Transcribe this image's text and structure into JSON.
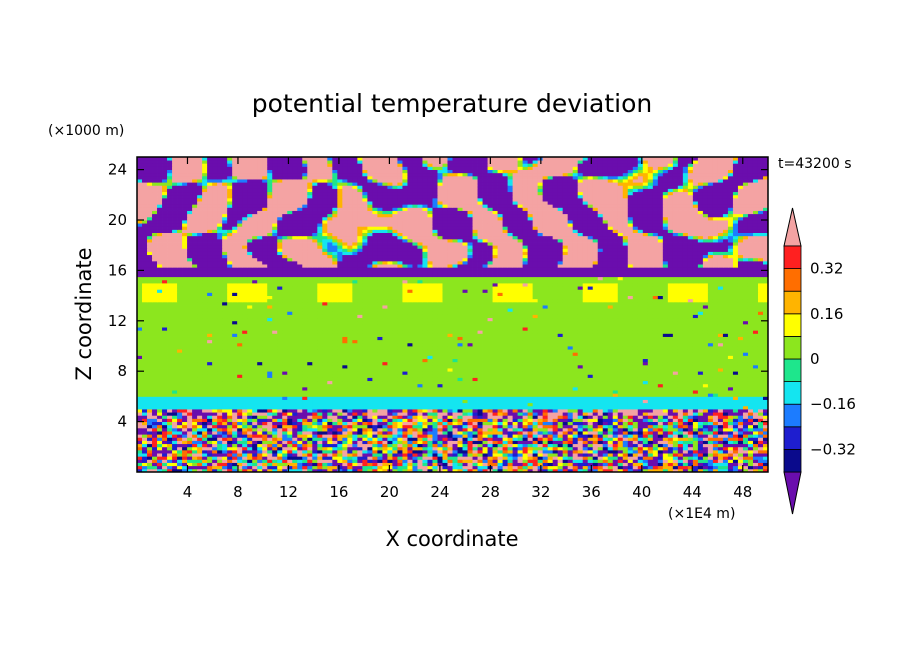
{
  "chart_data": {
    "type": "heatmap",
    "title": "potential temperature deviation",
    "xlabel": "X coordinate",
    "ylabel": "Z coordinate",
    "x_unit": "(×1E4 m)",
    "y_unit": "(×1000 m)",
    "time_label": "t=43200 s",
    "xlim": [
      0,
      50
    ],
    "ylim": [
      0,
      25
    ],
    "x_ticks": [
      4,
      8,
      12,
      16,
      20,
      24,
      28,
      32,
      36,
      40,
      44,
      48
    ],
    "y_ticks": [
      4,
      8,
      12,
      16,
      20,
      24
    ],
    "x_tick_labels": [
      "4",
      "8",
      "12",
      "16",
      "20",
      "24",
      "28",
      "32",
      "36",
      "40",
      "44",
      "48"
    ],
    "y_tick_labels": [
      "4",
      "8",
      "12",
      "16",
      "20",
      "24"
    ],
    "colorbar": {
      "levels": [
        -0.4,
        -0.32,
        -0.24,
        -0.16,
        -0.08,
        0,
        0.08,
        0.16,
        0.24,
        0.32,
        0.4
      ],
      "colors": [
        "#6a0dad",
        "#0a0a8c",
        "#1e1ecf",
        "#1c7cff",
        "#14e5f0",
        "#1ee68c",
        "#8ce61e",
        "#ffff00",
        "#ffb400",
        "#ff6e00",
        "#ff2020",
        "#f4a3a3"
      ],
      "tick_values": [
        -0.32,
        -0.16,
        0,
        0.16,
        0.32
      ],
      "tick_labels": [
        "−0.32",
        "−0.16",
        "0",
        "0.16",
        "0.32"
      ]
    },
    "regions": [
      {
        "z_range": [
          0,
          5
        ],
        "description_levels": "mixed turbulent layer from below -0.4 to above 0.4"
      },
      {
        "z_range": [
          5,
          15.5
        ],
        "dominant_level": [
          0,
          0.08
        ]
      },
      {
        "z_range": [
          15.5,
          25
        ],
        "dominant_levels": "alternating below -0.4 and above 0.4"
      }
    ]
  }
}
